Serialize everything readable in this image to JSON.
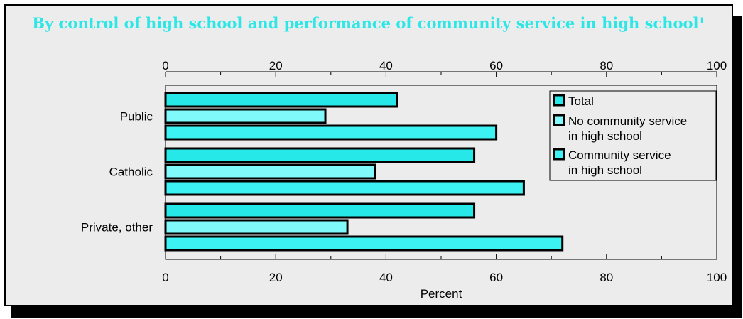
{
  "title": "By control of high school and performance of community service in high school¹",
  "chart_data": {
    "type": "bar",
    "orientation": "horizontal",
    "categories": [
      "Public",
      "Catholic",
      "Private, other"
    ],
    "series": [
      {
        "name": "Total",
        "values": [
          42,
          56,
          56
        ]
      },
      {
        "name": "No community service in high school",
        "values": [
          29,
          38,
          33
        ]
      },
      {
        "name": "Community service in high school",
        "values": [
          60,
          65,
          72
        ]
      }
    ],
    "xlim": [
      0,
      100
    ],
    "ticks": [
      0,
      20,
      40,
      60,
      80,
      100
    ],
    "tick_labels": [
      "0",
      "20",
      "40",
      "60",
      "80",
      "100"
    ],
    "xlabel": "Percent",
    "legend_entries": [
      [
        "Total"
      ],
      [
        "No community service",
        "in high school"
      ],
      [
        "Community service",
        "in high school"
      ]
    ],
    "legend_position": "top-right",
    "colors": [
      "#26e8e8",
      "#7ff9f9",
      "#3cf2f2"
    ]
  }
}
